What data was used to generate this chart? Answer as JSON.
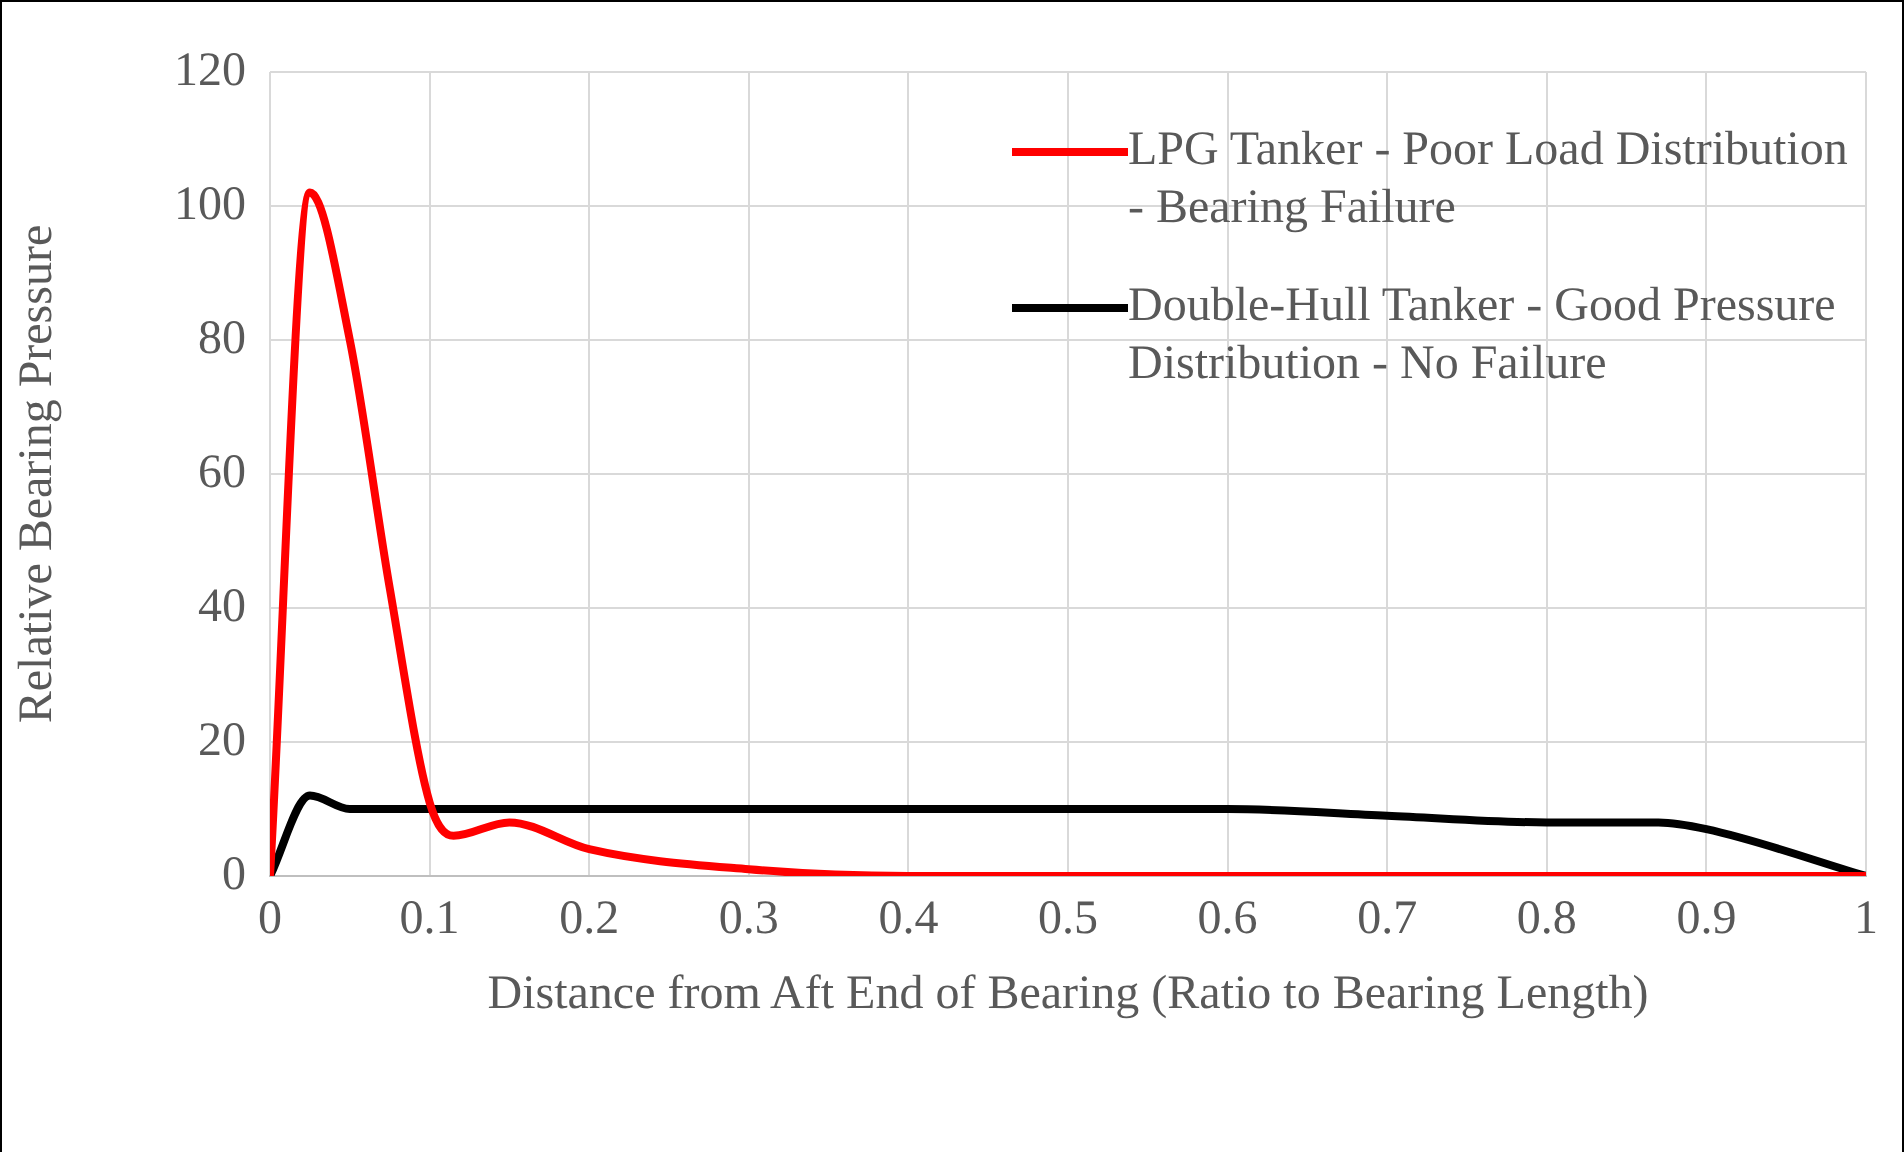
{
  "chart_data": {
    "type": "line",
    "xlabel": "Distance from Aft End of Bearing (Ratio to Bearing Length)",
    "ylabel": "Relative Bearing Pressure",
    "xlim": [
      0,
      1
    ],
    "xticks": [
      0,
      0.1,
      0.2,
      0.3,
      0.4,
      0.5,
      0.6,
      0.7,
      0.8,
      0.9,
      1
    ],
    "ylim": [
      0,
      120
    ],
    "yticks": [
      0,
      20,
      40,
      60,
      80,
      100,
      120
    ],
    "grid": true,
    "legend": "top right",
    "marker": "none",
    "line_style": "solid",
    "series": [
      {
        "name": "LPG Tanker - Poor Load Distribution - Bearing Failure",
        "color": "#ff0000",
        "x": [
          0,
          0.025,
          0.05,
          0.075,
          0.1,
          0.115,
          0.15,
          0.2,
          0.3,
          0.4,
          0.5,
          0.6,
          0.7,
          0.8,
          0.9,
          1
        ],
        "values": [
          0,
          102,
          80,
          43,
          11,
          6,
          8,
          4,
          1,
          0,
          0,
          0,
          0,
          0,
          0,
          0
        ]
      },
      {
        "name": "Double-Hull Tanker - Good Pressure Distribution - No Failure",
        "color": "#000000",
        "x": [
          0,
          0.025,
          0.05,
          0.1,
          0.2,
          0.3,
          0.4,
          0.5,
          0.6,
          0.7,
          0.8,
          0.87,
          0.9,
          1
        ],
        "values": [
          0,
          12,
          10,
          10,
          10,
          10,
          10,
          10,
          10,
          9,
          8,
          8,
          7,
          0
        ]
      }
    ]
  }
}
